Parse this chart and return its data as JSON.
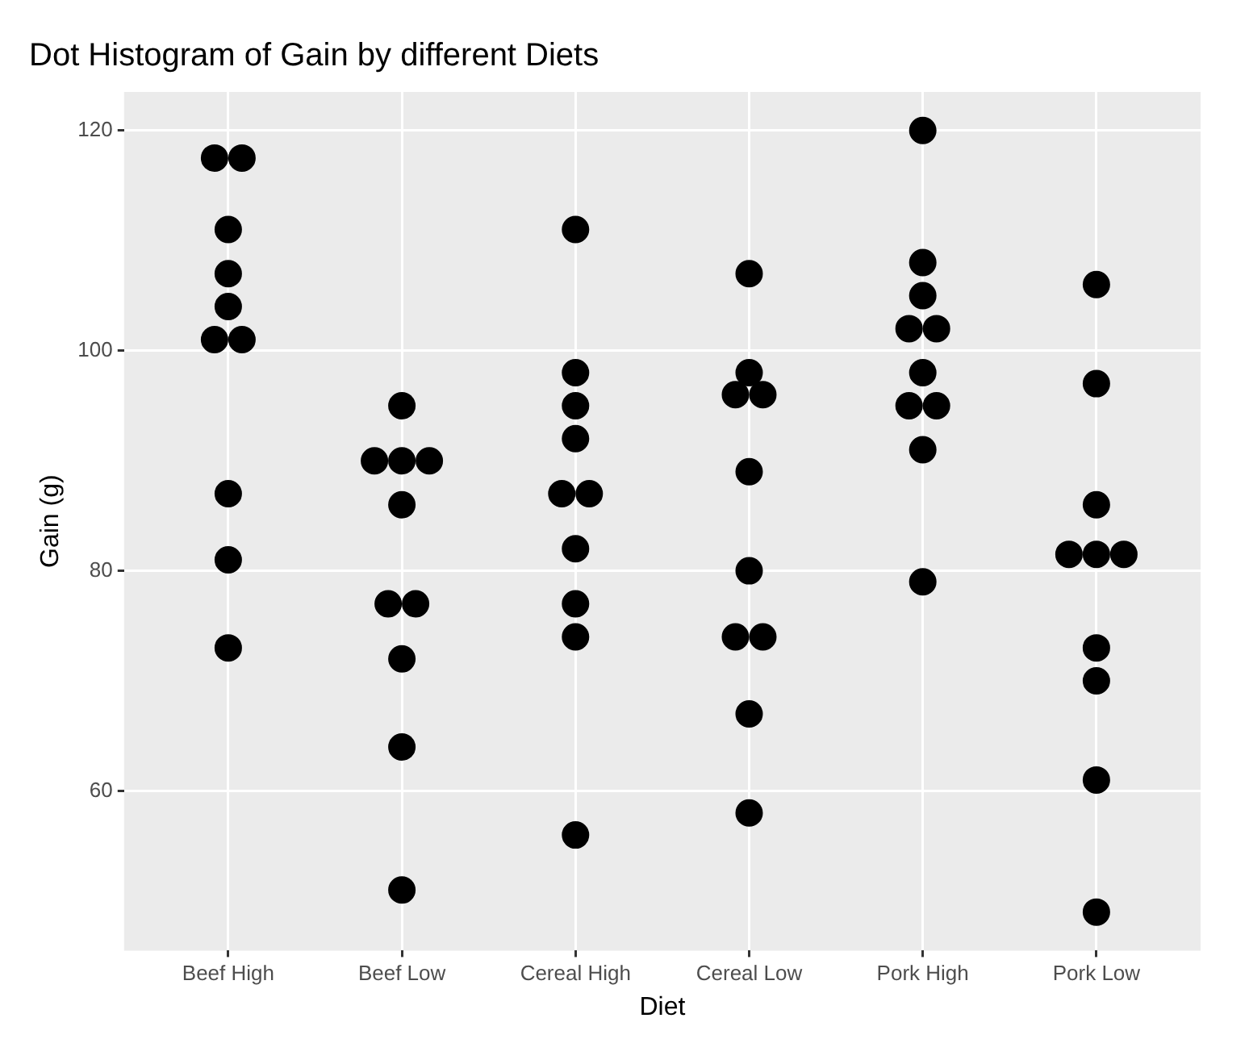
{
  "chart_data": {
    "type": "scatter",
    "title": "Dot Histogram of Gain by different Diets",
    "xlabel": "Diet",
    "ylabel": "Gain (g)",
    "categories": [
      "Beef High",
      "Beef Low",
      "Cereal High",
      "Cereal Low",
      "Pork High",
      "Pork Low"
    ],
    "series": [
      {
        "color": "#000000",
        "x": [
          "Beef High",
          "Beef High",
          "Beef High",
          "Beef High",
          "Beef High",
          "Beef High",
          "Beef High",
          "Beef High",
          "Beef High",
          "Beef High",
          "Beef Low",
          "Beef Low",
          "Beef Low",
          "Beef Low",
          "Beef Low",
          "Beef Low",
          "Beef Low",
          "Beef Low",
          "Beef Low",
          "Beef Low",
          "Cereal High",
          "Cereal High",
          "Cereal High",
          "Cereal High",
          "Cereal High",
          "Cereal High",
          "Cereal High",
          "Cereal High",
          "Cereal High",
          "Cereal High",
          "Cereal Low",
          "Cereal Low",
          "Cereal Low",
          "Cereal Low",
          "Cereal Low",
          "Cereal Low",
          "Cereal Low",
          "Cereal Low",
          "Cereal Low",
          "Cereal Low",
          "Pork High",
          "Pork High",
          "Pork High",
          "Pork High",
          "Pork High",
          "Pork High",
          "Pork High",
          "Pork High",
          "Pork High",
          "Pork High",
          "Pork Low",
          "Pork Low",
          "Pork Low",
          "Pork Low",
          "Pork Low",
          "Pork Low",
          "Pork Low",
          "Pork Low",
          "Pork Low",
          "Pork Low"
        ],
        "values": [
          117.5,
          117.5,
          111,
          107,
          104,
          101,
          101,
          87,
          81,
          73,
          95,
          90,
          90,
          90,
          86,
          77,
          77,
          72,
          64,
          51,
          111,
          98,
          95,
          92,
          87,
          87,
          82,
          77,
          74,
          56,
          107,
          98,
          96,
          96,
          89,
          80,
          74,
          74,
          67,
          58,
          120,
          108,
          105,
          102,
          102,
          98,
          95,
          95,
          91,
          79,
          106,
          97,
          86,
          81.5,
          81.5,
          81.5,
          73,
          70,
          61,
          49
        ]
      }
    ],
    "ylim": [
      45.5,
      123.5
    ],
    "yticks": [
      60,
      80,
      100,
      120
    ],
    "grid": true,
    "legend": false,
    "marker": "circle"
  }
}
